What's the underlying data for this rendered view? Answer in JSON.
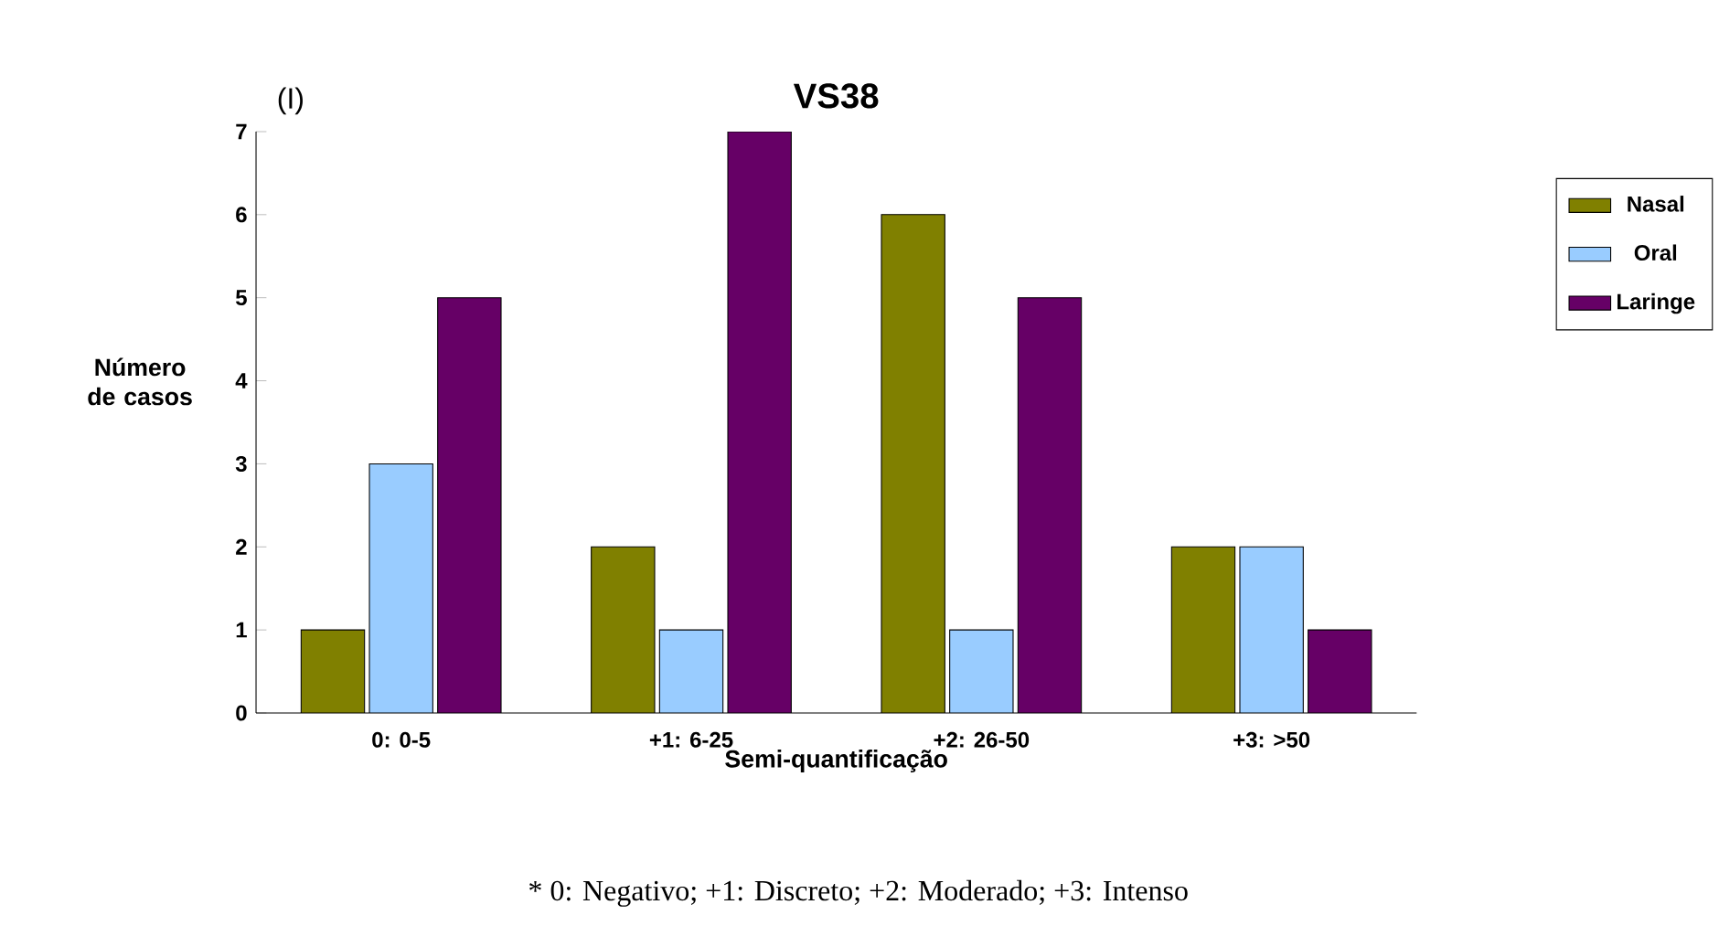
{
  "chart_data": {
    "type": "bar",
    "title": "VS38",
    "xlabel": "Semi-quantificação",
    "ylabel": "Número de casos",
    "categories": [
      "0: 0-5",
      "+1: 6-25",
      "+2: 26-50",
      "+3: >50"
    ],
    "series": [
      {
        "name": "Nasal",
        "color": "#808000",
        "values": [
          1,
          2,
          6,
          2
        ]
      },
      {
        "name": "Oral",
        "color": "#99ccff",
        "values": [
          3,
          1,
          1,
          2
        ]
      },
      {
        "name": "Laringe",
        "color": "#660066",
        "values": [
          5,
          7,
          5,
          1
        ]
      }
    ],
    "ylim": [
      0,
      7
    ],
    "yticks": [
      0,
      1,
      2,
      3,
      4,
      5,
      6,
      7
    ],
    "grid": false,
    "legend": "right",
    "annotations": [
      "(I)",
      "* 0: Negativo; +1: Discreto; +2: Moderado; +3: Intenso"
    ]
  }
}
